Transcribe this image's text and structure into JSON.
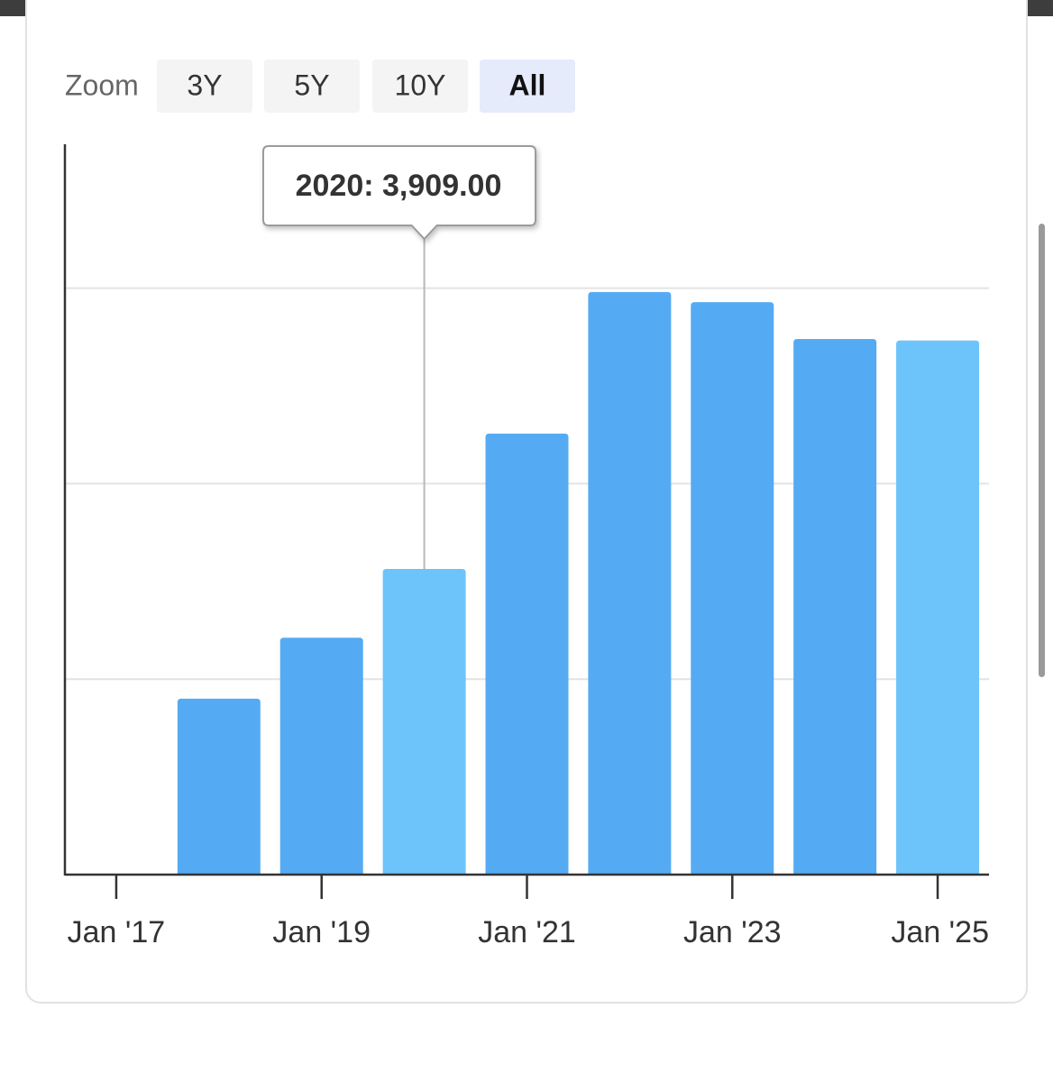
{
  "chart_data": {
    "type": "bar",
    "zoom": {
      "label": "Zoom",
      "options": [
        "3Y",
        "5Y",
        "10Y",
        "All"
      ],
      "selected": 3
    },
    "x": [
      2018,
      2019,
      2020,
      2021,
      2022,
      2023,
      2024,
      2025
    ],
    "values": [
      2250,
      3030,
      3909,
      5640,
      7450,
      7320,
      6850,
      6830
    ],
    "colors": [
      "#55abf3",
      "#55abf3",
      "#6dc4fa",
      "#55abf3",
      "#55abf3",
      "#55abf3",
      "#55abf3",
      "#6dc4fa"
    ],
    "xlim": [
      2016.5,
      2025.5
    ],
    "xticks": [
      {
        "value": 2017,
        "label": "Jan '17"
      },
      {
        "value": 2019,
        "label": "Jan '19"
      },
      {
        "value": 2021,
        "label": "Jan '21"
      },
      {
        "value": 2023,
        "label": "Jan '23"
      },
      {
        "value": 2025,
        "label": "Jan '25"
      }
    ],
    "ylim": [
      0,
      9340
    ],
    "yticks": [
      2500,
      5000,
      7500
    ],
    "grid": true,
    "tooltip": "2020: 3,909.00"
  }
}
